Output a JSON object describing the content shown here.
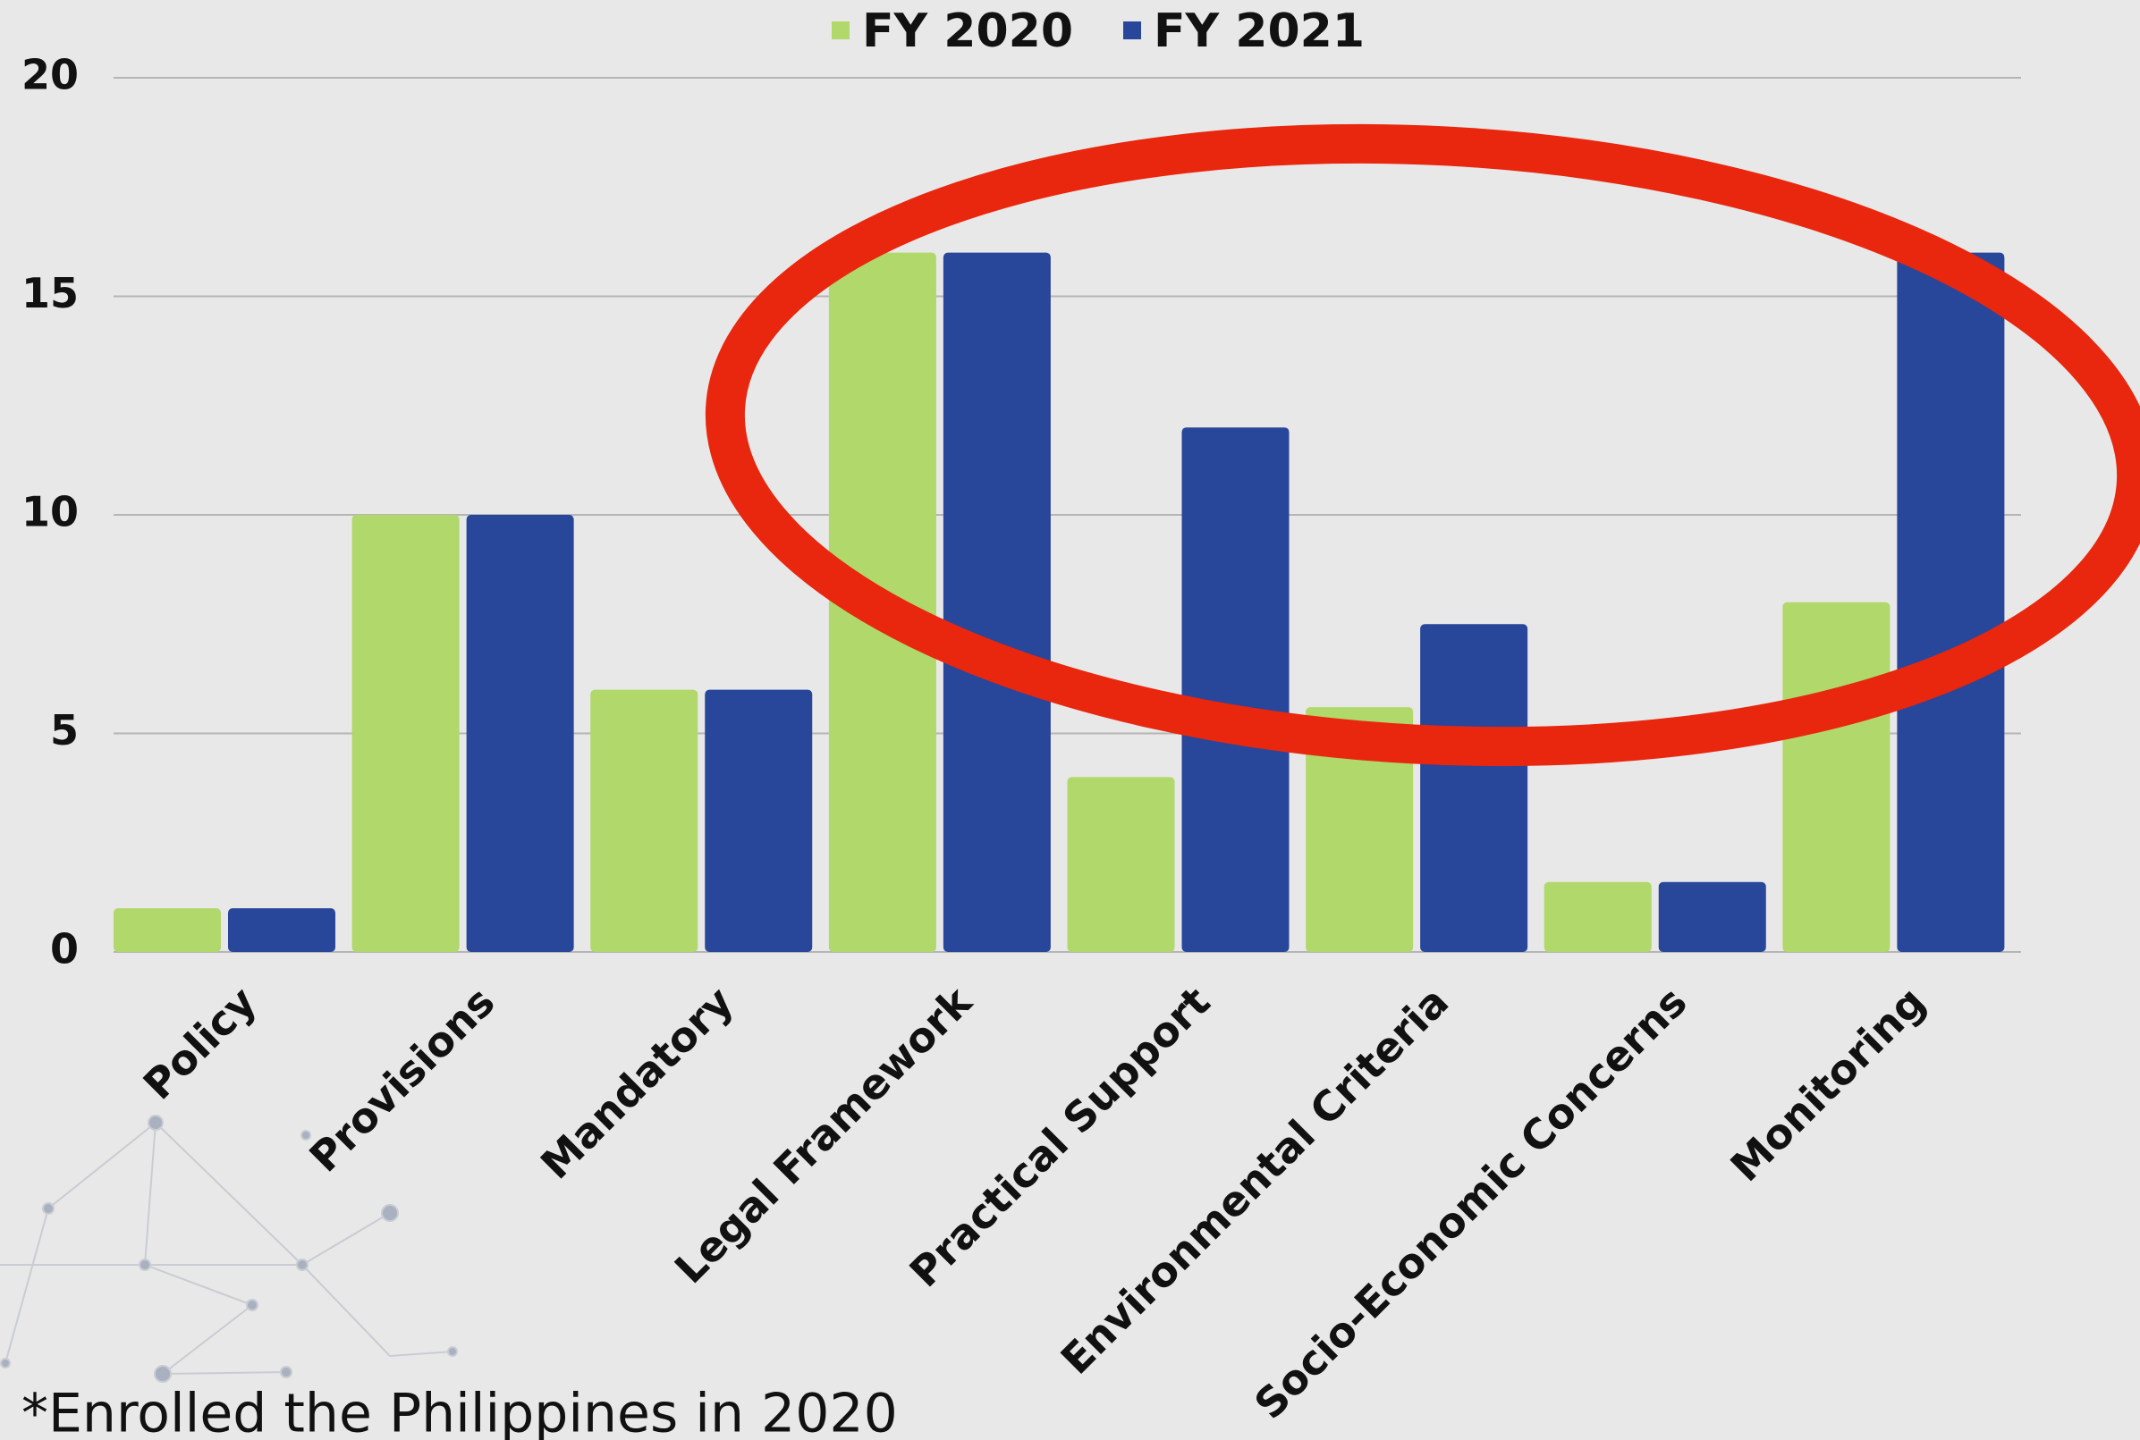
{
  "chart_data": {
    "type": "bar",
    "categories": [
      "Policy",
      "Provisions",
      "Mandatory",
      "Legal Framework",
      "Practical Support",
      "Environmental Criteria",
      "Socio-Economic Concerns",
      "Monitoring"
    ],
    "series": [
      {
        "name": "FY 2020",
        "color": "#b0d86a",
        "values": [
          1,
          10,
          6,
          16,
          4,
          5.6,
          1.6,
          8
        ]
      },
      {
        "name": "FY 2021",
        "color": "#28469a",
        "values": [
          1,
          10,
          6,
          16,
          12,
          7.5,
          1.6,
          16
        ]
      }
    ],
    "ylim": [
      0,
      20
    ],
    "yticks": [
      0,
      5,
      10,
      15,
      20
    ],
    "grid": true,
    "legend": "top",
    "footnote": "*Enrolled the Philippines in 2020"
  }
}
